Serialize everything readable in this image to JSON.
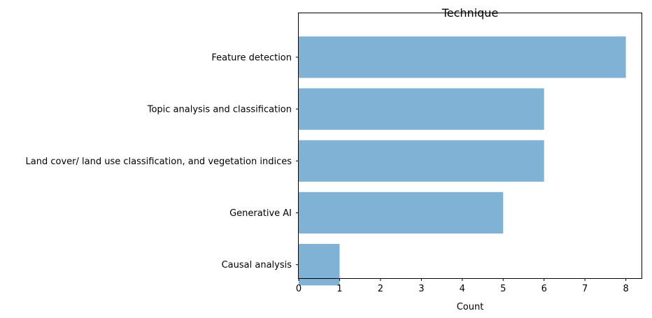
{
  "chart_data": {
    "type": "bar",
    "orientation": "horizontal",
    "title": "Technique",
    "xlabel": "Count",
    "ylabel": "",
    "categories": [
      "Feature detection",
      "Topic analysis and classification",
      "Land cover/ land use classification, and vegetation indices",
      "Generative AI",
      "Causal analysis"
    ],
    "values": [
      8,
      6,
      6,
      5,
      1
    ],
    "xlim": [
      0,
      8.4
    ],
    "xticks": [
      0,
      1,
      2,
      3,
      4,
      5,
      6,
      7,
      8
    ],
    "grid": false,
    "legend": "none",
    "bar_color": "#80b2d6"
  }
}
